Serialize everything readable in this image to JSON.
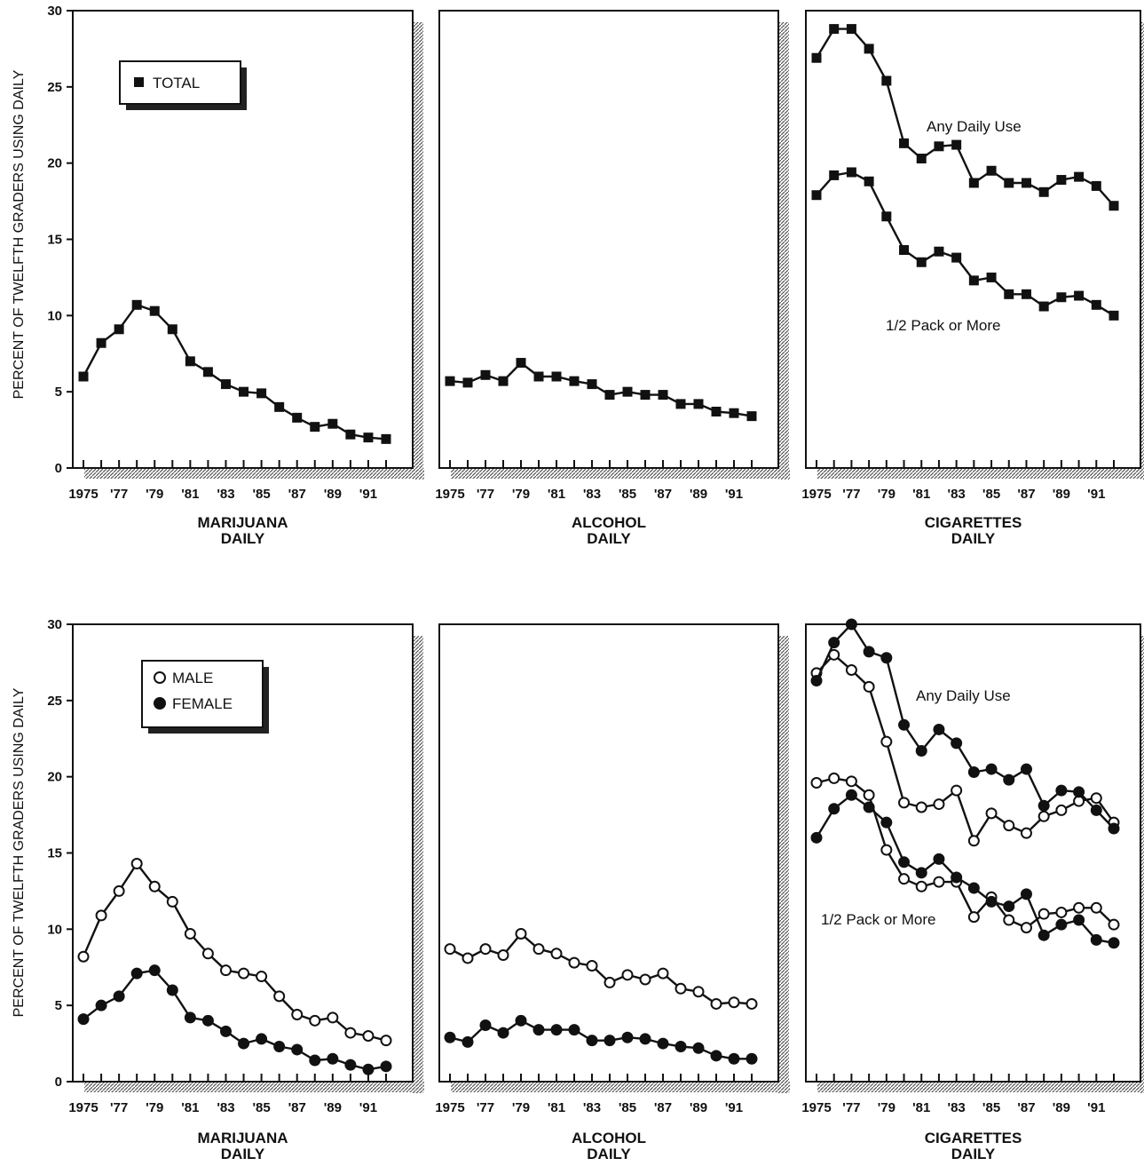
{
  "ylabel": "PERCENT OF TWELFTH GRADERS USING DAILY",
  "yticks": [
    "0",
    "5",
    "10",
    "15",
    "20",
    "25",
    "30"
  ],
  "xticks": [
    "1975",
    "'77",
    "'79",
    "'81",
    "'83",
    "'85",
    "'87",
    "'89",
    "'91"
  ],
  "legend_top": {
    "total": "TOTAL"
  },
  "legend_bottom": {
    "male": "MALE",
    "female": "FEMALE"
  },
  "annotations": {
    "any_daily": "Any Daily Use",
    "half_pack": "1/2 Pack or More"
  },
  "chart_data": [
    {
      "type": "line",
      "row": "top",
      "label_line1": "MARIJUANA",
      "label_line2": "DAILY",
      "x": [
        1975,
        1976,
        1977,
        1978,
        1979,
        1980,
        1981,
        1982,
        1983,
        1984,
        1985,
        1986,
        1987,
        1988,
        1989,
        1990,
        1991,
        1992
      ],
      "ylim": [
        0,
        30
      ],
      "series": [
        {
          "marker": "square",
          "values": [
            6.0,
            8.2,
            9.1,
            10.7,
            10.3,
            9.1,
            7.0,
            6.3,
            5.5,
            5.0,
            4.9,
            4.0,
            3.3,
            2.7,
            2.9,
            2.2,
            2.0,
            1.9
          ]
        }
      ]
    },
    {
      "type": "line",
      "row": "top",
      "label_line1": "ALCOHOL",
      "label_line2": "DAILY",
      "x": [
        1975,
        1976,
        1977,
        1978,
        1979,
        1980,
        1981,
        1982,
        1983,
        1984,
        1985,
        1986,
        1987,
        1988,
        1989,
        1990,
        1991,
        1992
      ],
      "ylim": [
        0,
        30
      ],
      "series": [
        {
          "marker": "square",
          "values": [
            5.7,
            5.6,
            6.1,
            5.7,
            6.9,
            6.0,
            6.0,
            5.7,
            5.5,
            4.8,
            5.0,
            4.8,
            4.8,
            4.2,
            4.2,
            3.7,
            3.6,
            3.4
          ]
        }
      ]
    },
    {
      "type": "line",
      "row": "top",
      "label_line1": "CIGARETTES",
      "label_line2": "DAILY",
      "x": [
        1975,
        1976,
        1977,
        1978,
        1979,
        1980,
        1981,
        1982,
        1983,
        1984,
        1985,
        1986,
        1987,
        1988,
        1989,
        1990,
        1991,
        1992
      ],
      "ylim": [
        0,
        30
      ],
      "series": [
        {
          "marker": "square",
          "values": [
            26.9,
            28.8,
            28.8,
            27.5,
            25.4,
            21.3,
            20.3,
            21.1,
            21.2,
            18.7,
            19.5,
            18.7,
            18.7,
            18.1,
            18.9,
            19.1,
            18.5,
            17.2
          ]
        },
        {
          "marker": "square",
          "values": [
            17.9,
            19.2,
            19.4,
            18.8,
            16.5,
            14.3,
            13.5,
            14.2,
            13.8,
            12.3,
            12.5,
            11.4,
            11.4,
            10.6,
            11.2,
            11.3,
            10.7,
            10.0
          ]
        }
      ]
    },
    {
      "type": "line",
      "row": "bottom",
      "label_line1": "MARIJUANA",
      "label_line2": "DAILY",
      "x": [
        1975,
        1976,
        1977,
        1978,
        1979,
        1980,
        1981,
        1982,
        1983,
        1984,
        1985,
        1986,
        1987,
        1988,
        1989,
        1990,
        1991,
        1992
      ],
      "ylim": [
        0,
        30
      ],
      "series": [
        {
          "marker": "open",
          "values": [
            8.2,
            10.9,
            12.5,
            14.3,
            12.8,
            11.8,
            9.7,
            8.4,
            7.3,
            7.1,
            6.9,
            5.6,
            4.4,
            4.0,
            4.2,
            3.2,
            3.0,
            2.7
          ]
        },
        {
          "marker": "filled",
          "values": [
            4.1,
            5.0,
            5.6,
            7.1,
            7.3,
            6.0,
            4.2,
            4.0,
            3.3,
            2.5,
            2.8,
            2.3,
            2.1,
            1.4,
            1.5,
            1.1,
            0.8,
            1.0
          ]
        }
      ]
    },
    {
      "type": "line",
      "row": "bottom",
      "label_line1": "ALCOHOL",
      "label_line2": "DAILY",
      "x": [
        1975,
        1976,
        1977,
        1978,
        1979,
        1980,
        1981,
        1982,
        1983,
        1984,
        1985,
        1986,
        1987,
        1988,
        1989,
        1990,
        1991,
        1992
      ],
      "ylim": [
        0,
        30
      ],
      "series": [
        {
          "marker": "open",
          "values": [
            8.7,
            8.1,
            8.7,
            8.3,
            9.7,
            8.7,
            8.4,
            7.8,
            7.6,
            6.5,
            7.0,
            6.7,
            7.1,
            6.1,
            5.9,
            5.1,
            5.2,
            5.1
          ]
        },
        {
          "marker": "filled",
          "values": [
            2.9,
            2.6,
            3.7,
            3.2,
            4.0,
            3.4,
            3.4,
            3.4,
            2.7,
            2.7,
            2.9,
            2.8,
            2.5,
            2.3,
            2.2,
            1.7,
            1.5,
            1.5
          ]
        }
      ]
    },
    {
      "type": "line",
      "row": "bottom",
      "label_line1": "CIGARETTES",
      "label_line2": "DAILY",
      "x": [
        1975,
        1976,
        1977,
        1978,
        1979,
        1980,
        1981,
        1982,
        1983,
        1984,
        1985,
        1986,
        1987,
        1988,
        1989,
        1990,
        1991,
        1992
      ],
      "ylim": [
        0,
        30
      ],
      "series": [
        {
          "marker": "open",
          "values": [
            26.8,
            28.0,
            27.0,
            25.9,
            22.3,
            18.3,
            18.0,
            18.2,
            19.1,
            15.8,
            17.6,
            16.8,
            16.3,
            17.4,
            17.8,
            18.4,
            18.6,
            17.0
          ]
        },
        {
          "marker": "filled",
          "values": [
            26.3,
            28.8,
            30.0,
            28.2,
            27.8,
            23.4,
            21.7,
            23.1,
            22.2,
            20.3,
            20.5,
            19.8,
            20.5,
            18.1,
            19.1,
            19.0,
            17.8,
            16.6
          ]
        },
        {
          "marker": "open",
          "values": [
            19.6,
            19.9,
            19.7,
            18.8,
            15.2,
            13.3,
            12.8,
            13.1,
            13.1,
            10.8,
            12.1,
            10.6,
            10.1,
            11.0,
            11.1,
            11.4,
            11.4,
            10.3
          ]
        },
        {
          "marker": "filled",
          "values": [
            16.0,
            17.9,
            18.8,
            18.0,
            17.0,
            14.4,
            13.7,
            14.6,
            13.4,
            12.7,
            11.8,
            11.5,
            12.3,
            9.6,
            10.3,
            10.6,
            9.3,
            9.1
          ]
        }
      ]
    }
  ]
}
